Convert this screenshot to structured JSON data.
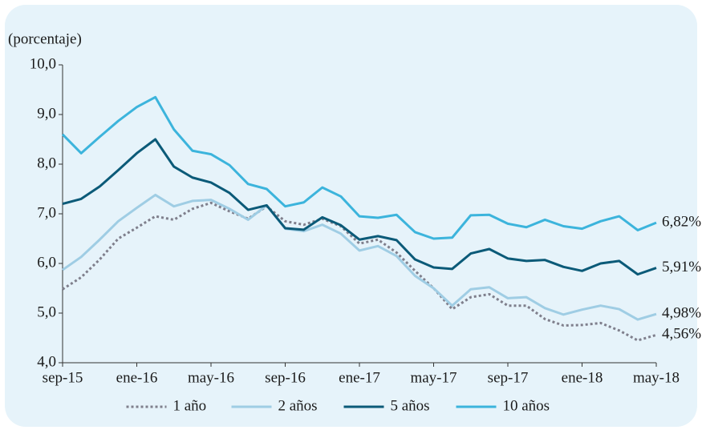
{
  "chart_data": {
    "type": "line",
    "y_label": "(porcentaje)",
    "categories": [
      "sep-15",
      null,
      null,
      null,
      "ene-16",
      null,
      null,
      null,
      "may-16",
      null,
      null,
      null,
      "sep-16",
      null,
      null,
      null,
      "ene-17",
      null,
      null,
      null,
      "may-17",
      null,
      null,
      null,
      "sep-17",
      null,
      null,
      null,
      "ene-18",
      null,
      null,
      null,
      "may-18"
    ],
    "ylim": [
      4,
      10
    ],
    "yticks": [
      {
        "value": 4,
        "label": "4,0"
      },
      {
        "value": 5,
        "label": "5,0"
      },
      {
        "value": 6,
        "label": "6,0"
      },
      {
        "value": 7,
        "label": "7,0"
      },
      {
        "value": 8,
        "label": "8,0"
      },
      {
        "value": 9,
        "label": "9,0"
      },
      {
        "value": 10,
        "label": "10,0"
      }
    ],
    "series": [
      {
        "name": "1 año",
        "color": "#7f7f8c",
        "style": "dotted",
        "values": [
          5.48,
          5.72,
          6.08,
          6.5,
          6.72,
          6.95,
          6.88,
          7.1,
          7.22,
          7.05,
          6.9,
          7.15,
          6.85,
          6.78,
          6.9,
          6.75,
          6.4,
          6.48,
          6.22,
          5.85,
          5.5,
          5.08,
          5.32,
          5.38,
          5.15,
          5.15,
          4.88,
          4.75,
          4.76,
          4.8,
          4.65,
          4.45,
          4.56
        ],
        "value_labels": [
          null,
          null,
          null,
          null,
          null,
          null,
          null,
          null,
          null,
          null,
          null,
          null,
          null,
          null,
          null,
          null,
          null,
          null,
          null,
          null,
          null,
          null,
          null,
          null,
          null,
          null,
          null,
          null,
          null,
          null,
          null,
          null,
          "4,56%"
        ]
      },
      {
        "name": "2 años",
        "color": "#9fcde4",
        "style": "solid",
        "values": [
          5.87,
          6.13,
          6.48,
          6.85,
          7.12,
          7.38,
          7.15,
          7.26,
          7.28,
          7.1,
          6.88,
          7.17,
          6.7,
          6.65,
          6.78,
          6.6,
          6.26,
          6.35,
          6.15,
          5.75,
          5.5,
          5.15,
          5.48,
          5.52,
          5.3,
          5.32,
          5.1,
          4.97,
          5.07,
          5.15,
          5.08,
          4.87,
          4.98
        ],
        "value_labels": [
          null,
          null,
          null,
          null,
          null,
          null,
          null,
          null,
          null,
          null,
          null,
          null,
          null,
          null,
          null,
          null,
          null,
          null,
          null,
          null,
          null,
          null,
          null,
          null,
          null,
          null,
          null,
          null,
          null,
          null,
          null,
          null,
          "4,98%"
        ]
      },
      {
        "name": "5 años",
        "color": "#0b5a78",
        "style": "solid",
        "values": [
          7.2,
          7.3,
          7.55,
          7.88,
          8.22,
          8.5,
          7.95,
          7.73,
          7.63,
          7.42,
          7.08,
          7.17,
          6.71,
          6.68,
          6.93,
          6.77,
          6.48,
          6.55,
          6.47,
          6.08,
          5.92,
          5.89,
          6.2,
          6.29,
          6.1,
          6.05,
          6.07,
          5.93,
          5.85,
          6.0,
          6.05,
          5.78,
          5.91
        ],
        "value_labels": [
          null,
          null,
          null,
          null,
          null,
          null,
          null,
          null,
          null,
          null,
          null,
          null,
          null,
          null,
          null,
          null,
          null,
          null,
          null,
          null,
          null,
          null,
          null,
          null,
          null,
          null,
          null,
          null,
          null,
          null,
          null,
          null,
          "5,91%"
        ]
      },
      {
        "name": "10 años",
        "color": "#3cb4dc",
        "style": "solid",
        "values": [
          8.6,
          8.22,
          8.55,
          8.87,
          9.15,
          9.35,
          8.7,
          8.27,
          8.2,
          7.98,
          7.6,
          7.5,
          7.15,
          7.23,
          7.53,
          7.35,
          6.95,
          6.92,
          6.98,
          6.63,
          6.5,
          6.52,
          6.97,
          6.98,
          6.8,
          6.73,
          6.88,
          6.75,
          6.7,
          6.85,
          6.95,
          6.67,
          6.82
        ],
        "value_labels": [
          null,
          null,
          null,
          null,
          null,
          null,
          null,
          null,
          null,
          null,
          null,
          null,
          null,
          null,
          null,
          null,
          null,
          null,
          null,
          null,
          null,
          null,
          null,
          null,
          null,
          null,
          null,
          null,
          null,
          null,
          null,
          null,
          "6,82%"
        ]
      }
    ]
  }
}
